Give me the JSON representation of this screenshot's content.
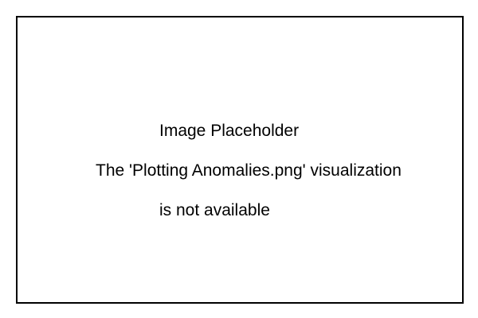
{
  "placeholder": {
    "title": "Image Placeholder",
    "message_line1": "The 'Plotting Anomalies.png' visualization",
    "message_line2": "is not available"
  }
}
